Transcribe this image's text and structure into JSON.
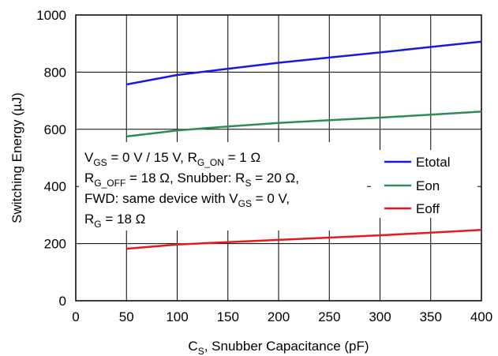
{
  "chart_data": {
    "type": "line",
    "xlabel_main": "C",
    "xlabel_sub": "S",
    "xlabel_rest": ", Snubber Capacitance (pF)",
    "ylabel": "Switching Energy (µJ)",
    "xlim": [
      0,
      400
    ],
    "ylim": [
      0,
      1000
    ],
    "x_ticks": [
      0,
      50,
      100,
      150,
      200,
      250,
      300,
      350,
      400
    ],
    "y_ticks": [
      0,
      200,
      400,
      600,
      800,
      1000
    ],
    "grid": true,
    "legend_position": "right",
    "series": [
      {
        "name": "Etotal",
        "color": "#1a1adc",
        "x": [
          50,
          100,
          150,
          200,
          250,
          300,
          350,
          400
        ],
        "values": [
          757,
          790,
          812,
          833,
          851,
          869,
          888,
          907
        ]
      },
      {
        "name": "Eon",
        "color": "#2e8b57",
        "x": [
          50,
          100,
          150,
          200,
          250,
          300,
          350,
          400
        ],
        "values": [
          575,
          596,
          610,
          622,
          632,
          641,
          651,
          662
        ]
      },
      {
        "name": "Eoff",
        "color": "#e61a1a",
        "x": [
          50,
          100,
          150,
          200,
          250,
          300,
          350,
          400
        ],
        "values": [
          182,
          197,
          205,
          213,
          221,
          229,
          238,
          248
        ]
      }
    ],
    "annotation": {
      "line1": {
        "p1": "V",
        "s1": "GS",
        "p2": " = 0 V / 15 V, R",
        "s2": "G_ON",
        "p3": " = 1 Ω"
      },
      "line2": {
        "p1": "R",
        "s1": "G_OFF",
        "p2": " = 18 Ω, Snubber: R",
        "s2": "S",
        "p3": " = 20 Ω,"
      },
      "line3": {
        "p1": "FWD: same device with V",
        "s1": "GS",
        "p2": " = 0 V,"
      },
      "line4": {
        "p1": "R",
        "s1": "G",
        "p2": " = 18 Ω"
      }
    }
  }
}
